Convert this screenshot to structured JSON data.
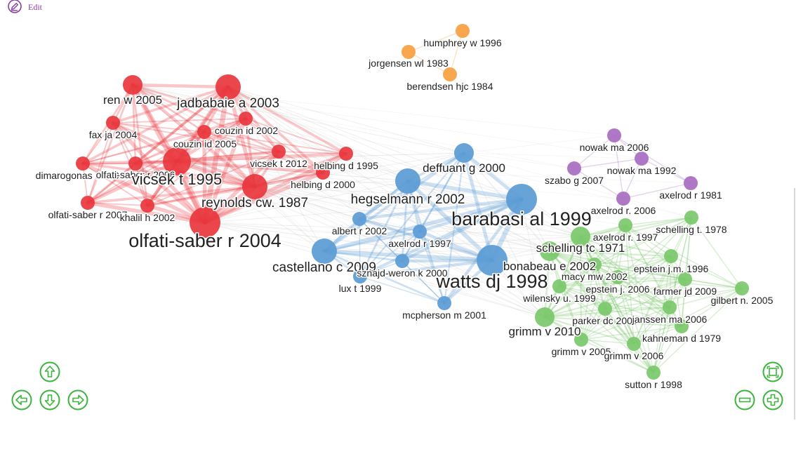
{
  "toolbar": {
    "edit_label": "Edit",
    "edit_icon": "pencil-circle-icon"
  },
  "colors": {
    "cluster_red": "#e8363d",
    "cluster_blue": "#5b9bd5",
    "cluster_green": "#7ac86a",
    "cluster_purple": "#a86cc1",
    "cluster_orange": "#f9a03f",
    "controls": "#3cb43c",
    "edit": "#8a3fa0"
  },
  "controls": {
    "pan_up": "arrow-up-icon",
    "pan_left": "arrow-left-icon",
    "pan_down": "arrow-down-icon",
    "pan_right": "arrow-right-icon",
    "fit": "fit-screen-icon",
    "zoom_out": "minus-icon",
    "zoom_in": "plus-icon"
  },
  "network": {
    "nodes": [
      {
        "id": "ren w 2005",
        "cluster": "red",
        "weight": 3
      },
      {
        "id": "jadbabaie a 2003",
        "cluster": "red",
        "weight": 4
      },
      {
        "id": "fax ja 2004",
        "cluster": "red",
        "weight": 2
      },
      {
        "id": "couzin id 2002",
        "cluster": "red",
        "weight": 2
      },
      {
        "id": "couzin id 2005",
        "cluster": "red",
        "weight": 2
      },
      {
        "id": "vicsek t 2012",
        "cluster": "red",
        "weight": 2
      },
      {
        "id": "dimarogonas dv 2012",
        "cluster": "red",
        "weight": 2
      },
      {
        "id": "olfati-saber r 2006",
        "cluster": "red",
        "weight": 2
      },
      {
        "id": "vicsek t 1995",
        "cluster": "red",
        "weight": 5
      },
      {
        "id": "reynolds cw. 1987",
        "cluster": "red",
        "weight": 4
      },
      {
        "id": "helbing d 1995",
        "cluster": "red",
        "weight": 2
      },
      {
        "id": "helbing d 2000",
        "cluster": "red",
        "weight": 2
      },
      {
        "id": "olfati-saber r 2007",
        "cluster": "red",
        "weight": 2
      },
      {
        "id": "khalil h 2002",
        "cluster": "red",
        "weight": 2
      },
      {
        "id": "olfati-saber r 2004",
        "cluster": "red",
        "weight": 6
      },
      {
        "id": "deffuant g 2000",
        "cluster": "blue",
        "weight": 3
      },
      {
        "id": "hegselmann r 2002",
        "cluster": "blue",
        "weight": 4
      },
      {
        "id": "barabasi al 1999",
        "cluster": "blue",
        "weight": 6
      },
      {
        "id": "albert r 2002",
        "cluster": "blue",
        "weight": 2
      },
      {
        "id": "axelrod r 1997",
        "cluster": "blue",
        "weight": 2
      },
      {
        "id": "castellano c 2009",
        "cluster": "blue",
        "weight": 4
      },
      {
        "id": "sznajd-weron k 2000",
        "cluster": "blue",
        "weight": 2
      },
      {
        "id": "lux t 1999",
        "cluster": "blue",
        "weight": 2
      },
      {
        "id": "watts dj 1998",
        "cluster": "blue",
        "weight": 6
      },
      {
        "id": "mcpherson m 2001",
        "cluster": "blue",
        "weight": 2
      },
      {
        "id": "humphrey w 1996",
        "cluster": "orange",
        "weight": 2
      },
      {
        "id": "jorgensen wl 1983",
        "cluster": "orange",
        "weight": 2
      },
      {
        "id": "berendsen hjc 1984",
        "cluster": "orange",
        "weight": 2
      },
      {
        "id": "nowak ma 2006",
        "cluster": "purple",
        "weight": 2
      },
      {
        "id": "szabo g 2007",
        "cluster": "purple",
        "weight": 2
      },
      {
        "id": "nowak ma 1992",
        "cluster": "purple",
        "weight": 2
      },
      {
        "id": "axelrod r 1981",
        "cluster": "purple",
        "weight": 2
      },
      {
        "id": "axelrod r. 2006",
        "cluster": "purple",
        "weight": 2
      },
      {
        "id": "schelling t. 1978",
        "cluster": "green",
        "weight": 2
      },
      {
        "id": "axelrod r. 1997",
        "cluster": "green",
        "weight": 2
      },
      {
        "id": "schelling tc 1971",
        "cluster": "green",
        "weight": 3
      },
      {
        "id": "bonabeau e 2002",
        "cluster": "green",
        "weight": 3
      },
      {
        "id": "epstein j.m. 1996",
        "cluster": "green",
        "weight": 2
      },
      {
        "id": "macy mw 2002",
        "cluster": "green",
        "weight": 2
      },
      {
        "id": "epstein j. 2006",
        "cluster": "green",
        "weight": 2
      },
      {
        "id": "farmer jd 2009",
        "cluster": "green",
        "weight": 2
      },
      {
        "id": "wilensky u. 1999",
        "cluster": "green",
        "weight": 2
      },
      {
        "id": "gilbert n. 2005",
        "cluster": "green",
        "weight": 2
      },
      {
        "id": "parker dc 2003",
        "cluster": "green",
        "weight": 2
      },
      {
        "id": "janssen ma 2006",
        "cluster": "green",
        "weight": 2
      },
      {
        "id": "grimm v 2010",
        "cluster": "green",
        "weight": 3
      },
      {
        "id": "kahneman d 1979",
        "cluster": "green",
        "weight": 2
      },
      {
        "id": "grimm v 2005",
        "cluster": "green",
        "weight": 2
      },
      {
        "id": "grimm v 2006",
        "cluster": "green",
        "weight": 2
      },
      {
        "id": "sutton r 1998",
        "cluster": "green",
        "weight": 2
      }
    ]
  }
}
